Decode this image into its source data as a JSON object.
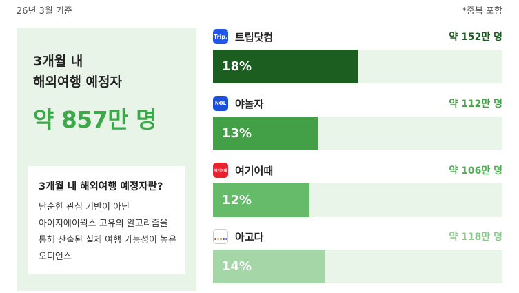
{
  "header": {
    "basis": "26년 3월 기준",
    "note": "*중복 포함"
  },
  "summary": {
    "headline_line1": "3개월 내",
    "headline_line2": "해외여행 예정자",
    "total": "약 857만 명",
    "info_title": "3개월 내 해외여행 예정자란?",
    "info_lines": [
      "단순한 관심 기반이 아닌",
      "아이지에이웍스 고유의 알고리즘을",
      "통해 산출된 실제 여행 가능성이 높은",
      "오디언스"
    ]
  },
  "rows": [
    {
      "brand": "트립닷컴",
      "logo_text": "Trip.",
      "count": "약 152만 명",
      "percent_label": "18%",
      "share": 0.18,
      "bar_color": "#1b5e20",
      "count_color": "#1b5e20"
    },
    {
      "brand": "야놀자",
      "logo_text": "NOL",
      "count": "약 112만 명",
      "percent_label": "13%",
      "share": 0.13,
      "bar_color": "#43a047",
      "count_color": "#43a047"
    },
    {
      "brand": "여기어때",
      "logo_text": "여기어때",
      "count": "약 106만 명",
      "percent_label": "12%",
      "share": 0.12,
      "bar_color": "#66bb6a",
      "count_color": "#4caf50"
    },
    {
      "brand": "아고다",
      "logo_text": "agoda",
      "count": "약 118만 명",
      "percent_label": "14%",
      "share": 0.14,
      "bar_color": "#a5d6a7",
      "count_color": "#8cc98e"
    }
  ],
  "colors": {
    "panel_bg": "#e8f4e8",
    "accent": "#3da84a",
    "track_bg": "#e9f5e9"
  }
}
